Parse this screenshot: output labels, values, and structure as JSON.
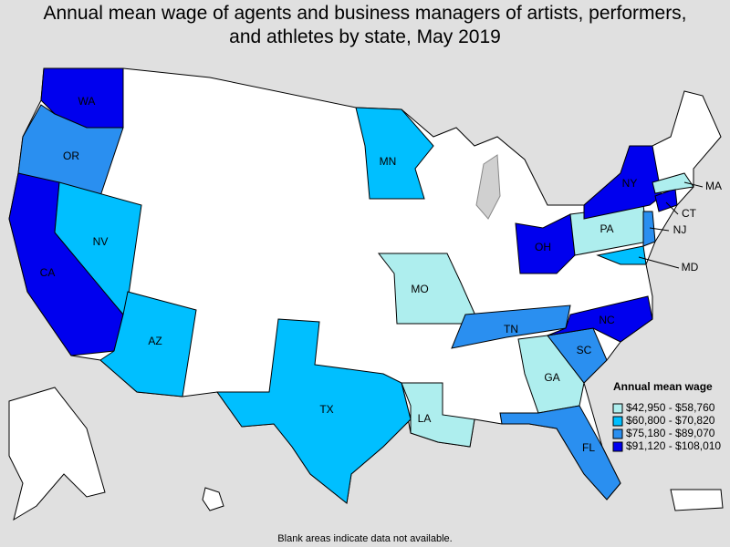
{
  "title": "Annual mean wage of agents and business managers of artists, performers, and athletes by state, May 2019",
  "states": [
    {
      "label": "WA",
      "class": 3
    },
    {
      "label": "OR",
      "class": 2
    },
    {
      "label": "CA",
      "class": 3
    },
    {
      "label": "NV",
      "class": 1
    },
    {
      "label": "AZ",
      "class": 1
    },
    {
      "label": "MN",
      "class": 1
    },
    {
      "label": "TX",
      "class": 1
    },
    {
      "label": "MO",
      "class": 0
    },
    {
      "label": "LA",
      "class": 0
    },
    {
      "label": "TN",
      "class": 2
    },
    {
      "label": "GA",
      "class": 0
    },
    {
      "label": "SC",
      "class": 2
    },
    {
      "label": "FL",
      "class": 2
    },
    {
      "label": "NC",
      "class": 3
    },
    {
      "label": "OH",
      "class": 3
    },
    {
      "label": "PA",
      "class": 0
    },
    {
      "label": "NY",
      "class": 3
    },
    {
      "label": "CT",
      "class": 3
    },
    {
      "label": "MA",
      "class": 0
    },
    {
      "label": "NJ",
      "class": 2
    },
    {
      "label": "MD",
      "class": 1
    }
  ],
  "legend": {
    "title": "Annual mean wage",
    "items": [
      {
        "label": "$42,950 - $58,760",
        "color": "#aeeeee"
      },
      {
        "label": "$60,800 - $70,820",
        "color": "#00bfff"
      },
      {
        "label": "$75,180 - $89,070",
        "color": "#2a8ff0"
      },
      {
        "label": "$91,120 - $108,010",
        "color": "#0000ee"
      }
    ]
  },
  "note": "Blank areas indicate data not available."
}
